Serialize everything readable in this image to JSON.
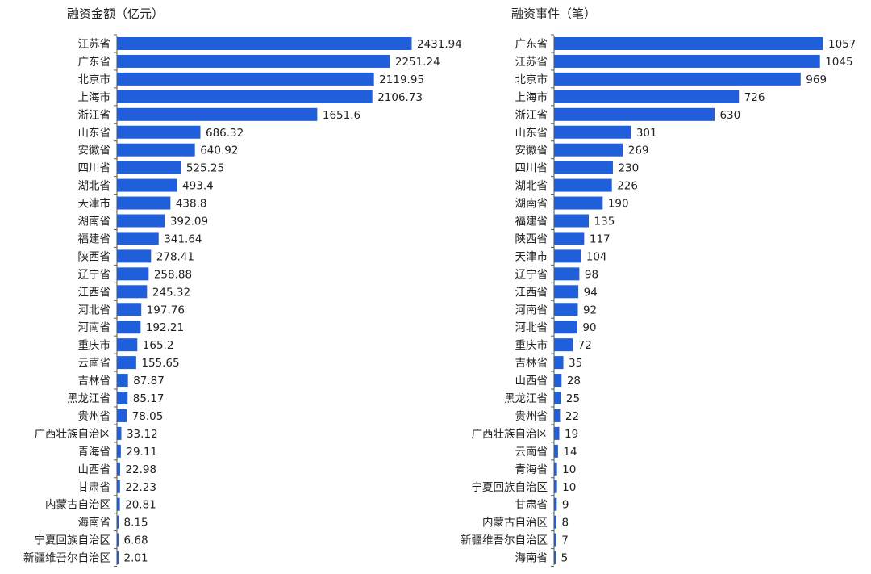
{
  "colors": {
    "bar": "#1f5fdc",
    "axis": "#555555",
    "text": "#222222"
  },
  "chart_data": [
    {
      "type": "bar",
      "orientation": "horizontal",
      "title": "融资金额（亿元）",
      "categories": [
        "江苏省",
        "广东省",
        "北京市",
        "上海市",
        "浙江省",
        "山东省",
        "安徽省",
        "四川省",
        "湖北省",
        "天津市",
        "湖南省",
        "福建省",
        "陕西省",
        "辽宁省",
        "江西省",
        "河北省",
        "河南省",
        "重庆市",
        "云南省",
        "吉林省",
        "黑龙江省",
        "贵州省",
        "广西壮族自治区",
        "青海省",
        "山西省",
        "甘肃省",
        "内蒙古自治区",
        "海南省",
        "宁夏回族自治区",
        "新疆维吾尔自治区"
      ],
      "values": [
        2431.94,
        2251.24,
        2119.95,
        2106.73,
        1651.6,
        686.32,
        640.92,
        525.25,
        493.4,
        438.8,
        392.09,
        341.64,
        278.41,
        258.88,
        245.32,
        197.76,
        192.21,
        165.2,
        155.65,
        87.87,
        85.17,
        78.05,
        33.12,
        29.11,
        22.98,
        22.23,
        20.81,
        8.15,
        6.68,
        2.01
      ],
      "value_labels": [
        "2431.94",
        "2251.24",
        "2119.95",
        "2106.73",
        "1651.6",
        "686.32",
        "640.92",
        "525.25",
        "493.4",
        "438.8",
        "392.09",
        "341.64",
        "278.41",
        "258.88",
        "245.32",
        "197.76",
        "192.21",
        "165.2",
        "155.65",
        "87.87",
        "85.17",
        "78.05",
        "33.12",
        "29.11",
        "22.98",
        "22.23",
        "20.81",
        "8.15",
        "6.68",
        "2.01"
      ]
    },
    {
      "type": "bar",
      "orientation": "horizontal",
      "title": "融资事件（笔）",
      "categories": [
        "广东省",
        "江苏省",
        "北京市",
        "上海市",
        "浙江省",
        "山东省",
        "安徽省",
        "四川省",
        "湖北省",
        "湖南省",
        "福建省",
        "陕西省",
        "天津市",
        "辽宁省",
        "江西省",
        "河南省",
        "河北省",
        "重庆市",
        "吉林省",
        "山西省",
        "黑龙江省",
        "贵州省",
        "广西壮族自治区",
        "云南省",
        "青海省",
        "宁夏回族自治区",
        "甘肃省",
        "内蒙古自治区",
        "新疆维吾尔自治区",
        "海南省"
      ],
      "values": [
        1057,
        1045,
        969,
        726,
        630,
        301,
        269,
        230,
        226,
        190,
        135,
        117,
        104,
        98,
        94,
        92,
        90,
        72,
        35,
        28,
        25,
        22,
        19,
        14,
        10,
        10,
        9,
        8,
        7,
        5
      ],
      "value_labels": [
        "1057",
        "1045",
        "969",
        "726",
        "630",
        "301",
        "269",
        "230",
        "226",
        "190",
        "135",
        "117",
        "104",
        "98",
        "94",
        "92",
        "90",
        "72",
        "35",
        "28",
        "25",
        "22",
        "19",
        "14",
        "10",
        "10",
        "9",
        "8",
        "7",
        "5"
      ]
    }
  ]
}
